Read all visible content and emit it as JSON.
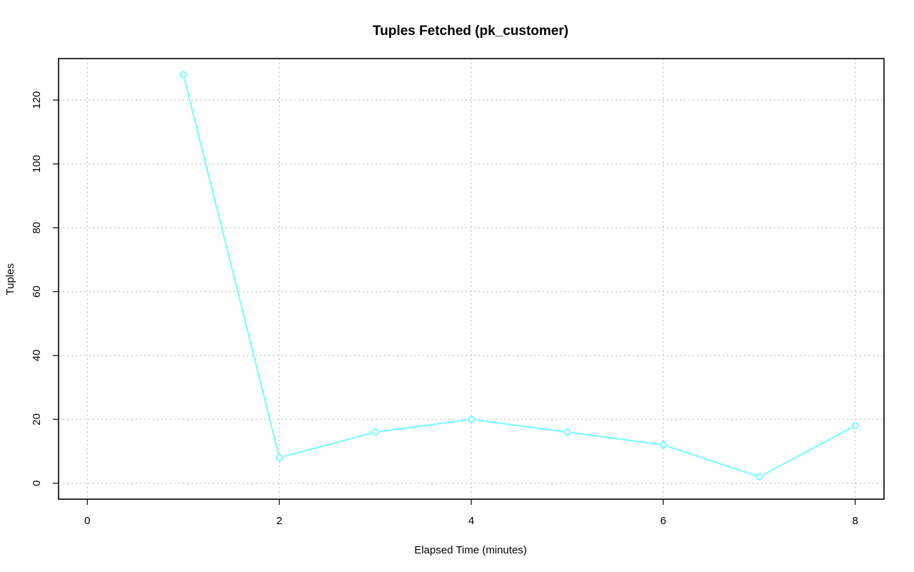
{
  "chart_data": {
    "type": "line",
    "title": "Tuples Fetched (pk_customer)",
    "xlabel": "Elapsed Time (minutes)",
    "ylabel": "Tuples",
    "xlim": [
      -0.3,
      8.3
    ],
    "ylim": [
      -5,
      133
    ],
    "xticks": [
      0,
      2,
      4,
      6,
      8
    ],
    "yticks": [
      0,
      20,
      40,
      60,
      80,
      100,
      120
    ],
    "grid": true,
    "series": [
      {
        "color": "#66ffff",
        "x": [
          1,
          2,
          3,
          4,
          5,
          6,
          7,
          8
        ],
        "y": [
          128,
          8,
          16,
          20,
          16,
          12,
          2,
          18
        ]
      }
    ]
  }
}
